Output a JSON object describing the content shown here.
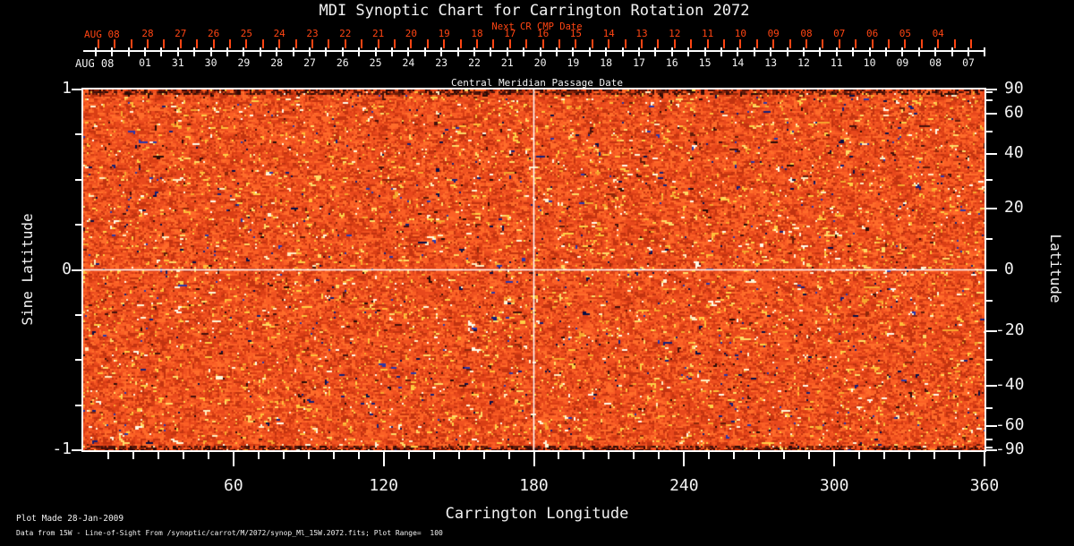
{
  "colors": {
    "background": "#000000",
    "accent_red": "#ff4513",
    "text_white": "#f2f2f2",
    "frame_white": "#ffffff"
  },
  "chart_data": {
    "type": "heatmap",
    "title": "MDI Synoptic Chart for Carrington Rotation 2072",
    "subtitle": "Next CR CMP Date",
    "top_axes": {
      "next_cr": {
        "month": "AUG 08",
        "days": [
          "28",
          "27",
          "26",
          "25",
          "24",
          "23",
          "22",
          "21",
          "20",
          "19",
          "18",
          "17",
          "16",
          "15",
          "14",
          "13",
          "12",
          "11",
          "10",
          "09",
          "08",
          "07",
          "06",
          "05",
          "04"
        ]
      },
      "cmp": {
        "month": "AUG 08",
        "days": [
          "01",
          "31",
          "30",
          "29",
          "28",
          "27",
          "26",
          "25",
          "24",
          "23",
          "22",
          "21",
          "20",
          "19",
          "18",
          "17",
          "16",
          "15",
          "14",
          "13",
          "12",
          "11",
          "10",
          "09",
          "08",
          "07"
        ],
        "label": "Central Meridian Passage Date"
      }
    },
    "bottom_axis": {
      "label": "Carrington Longitude",
      "major_ticks": [
        "60",
        "120",
        "180",
        "240",
        "300",
        "360"
      ],
      "minor_step_deg": 10,
      "range": [
        0,
        360
      ]
    },
    "left_axis": {
      "label": "Sine Latitude",
      "major_ticks": [
        "1",
        "0",
        "-1"
      ],
      "minor_step": 0.25,
      "range": [
        -1,
        1
      ]
    },
    "right_axis": {
      "label": "Latitude",
      "labeled_ticks_deg": [
        "90",
        "60",
        "40",
        "20",
        "0",
        "-20",
        "-40",
        "-60",
        "-90"
      ],
      "minor_step_deg": 10,
      "scale": "sine"
    },
    "reference_lines": {
      "carrington_longitude": 180,
      "sine_latitude": 0
    },
    "field": {
      "kind": "line-of-sight magnetogram noise map",
      "plot_range_gauss": 100,
      "description": "Speckled orange-red synoptic magnetogram; bright yellow/cream specks (positive flux), dark navy/black specks (negative flux), darker mottled strips at polar (top/bottom) edges, white reference lines at longitude 180 and sine latitude 0",
      "palette": {
        "base": [
          "#c23310",
          "#d93e14",
          "#e8481c",
          "#f05220",
          "#fb5f25",
          "#ff6c2a"
        ],
        "bright_yellow": [
          "#ffcf46",
          "#ffbe3a",
          "#f7a62e",
          "#ffda66"
        ],
        "bright_white": [
          "#fff8d8",
          "#fffbe8",
          "#ffeec0"
        ],
        "negative_blue": [
          "#2b36a8",
          "#141f78",
          "#070e46"
        ],
        "dark": [
          "#47100a",
          "#2a0a05",
          "#641b08",
          "#8f2609"
        ]
      }
    },
    "footer": {
      "line1": "Plot Made 28-Jan-2009",
      "line2": "Data from 15W - Line-of-Sight From /synoptic/carrot/M/2072/synop_Ml_15W.2072.fits; Plot Range=  100"
    }
  }
}
